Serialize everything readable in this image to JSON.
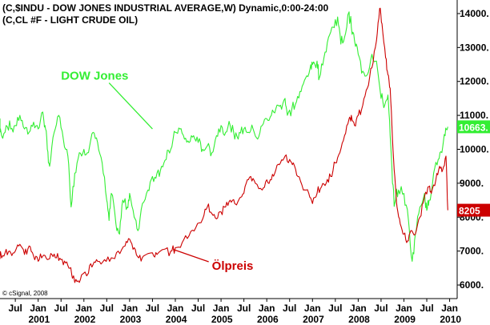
{
  "header": {
    "line1": "(C,$INDU - DOW JONES INDUSTRIAL AVERAGE,W) Dynamic,0:00-24:00",
    "line2": "(C,CL #F - LIGHT CRUDE OIL)"
  },
  "copyright": "© cSignal, 2008",
  "chart_data": {
    "type": "line",
    "ylim": [
      5600,
      14400
    ],
    "xlim": [
      2000.0,
      2010.2
    ],
    "yticks": [
      {
        "value": 14000,
        "label": "14000."
      },
      {
        "value": 13000,
        "label": "13000."
      },
      {
        "value": 12000,
        "label": "12000."
      },
      {
        "value": 11000,
        "label": "11000."
      },
      {
        "value": 10000,
        "label": "10000."
      },
      {
        "value": 9000,
        "label": "9000."
      },
      {
        "value": 8000,
        "label": "8000."
      },
      {
        "value": 7000,
        "label": "7000."
      },
      {
        "value": 6000,
        "label": "6000."
      }
    ],
    "xticks": [
      {
        "t": 2000.5,
        "label": "Jul"
      },
      {
        "t": 2001.0,
        "label": "Jan"
      },
      {
        "t": 2001.5,
        "label": "Jul"
      },
      {
        "t": 2002.0,
        "label": "Jan"
      },
      {
        "t": 2002.5,
        "label": "Jul"
      },
      {
        "t": 2003.0,
        "label": "Jan"
      },
      {
        "t": 2003.5,
        "label": "Jul"
      },
      {
        "t": 2004.0,
        "label": "Jan"
      },
      {
        "t": 2004.5,
        "label": "Jul"
      },
      {
        "t": 2005.0,
        "label": "Jan"
      },
      {
        "t": 2005.5,
        "label": "Jul"
      },
      {
        "t": 2006.0,
        "label": "Jan"
      },
      {
        "t": 2006.5,
        "label": "Jul"
      },
      {
        "t": 2007.0,
        "label": "Jan"
      },
      {
        "t": 2007.5,
        "label": "Jul"
      },
      {
        "t": 2008.0,
        "label": "Jan"
      },
      {
        "t": 2008.5,
        "label": "Jul"
      },
      {
        "t": 2009.0,
        "label": "Jan"
      },
      {
        "t": 2009.5,
        "label": "Jul"
      },
      {
        "t": 2010.0,
        "label": "Jan"
      }
    ],
    "years": [
      {
        "t": 2001.0,
        "label": "2001"
      },
      {
        "t": 2002.0,
        "label": "2002"
      },
      {
        "t": 2003.0,
        "label": "2003"
      },
      {
        "t": 2004.0,
        "label": "2004"
      },
      {
        "t": 2005.0,
        "label": "2005"
      },
      {
        "t": 2006.0,
        "label": "2006"
      },
      {
        "t": 2007.0,
        "label": "2007"
      },
      {
        "t": 2008.0,
        "label": "2008"
      },
      {
        "t": 2009.0,
        "label": "2009"
      },
      {
        "t": 2010.0,
        "label": "2010"
      }
    ],
    "series": [
      {
        "name": "DOW Jones",
        "color": "#33ee33",
        "last_label": "10663.",
        "points": [
          [
            2000.0,
            10500
          ],
          [
            2000.1,
            10900
          ],
          [
            2000.2,
            10400
          ],
          [
            2000.3,
            10700
          ],
          [
            2000.4,
            10600
          ],
          [
            2000.5,
            10700
          ],
          [
            2000.6,
            11000
          ],
          [
            2000.7,
            10600
          ],
          [
            2000.8,
            10500
          ],
          [
            2000.9,
            10800
          ],
          [
            2001.0,
            10600
          ],
          [
            2001.1,
            11100
          ],
          [
            2001.15,
            10700
          ],
          [
            2001.2,
            10000
          ],
          [
            2001.25,
            9500
          ],
          [
            2001.35,
            10500
          ],
          [
            2001.45,
            11000
          ],
          [
            2001.55,
            10300
          ],
          [
            2001.65,
            9800
          ],
          [
            2001.72,
            8300
          ],
          [
            2001.8,
            9300
          ],
          [
            2001.9,
            9900
          ],
          [
            2002.0,
            10000
          ],
          [
            2002.1,
            9900
          ],
          [
            2002.2,
            10500
          ],
          [
            2002.3,
            10200
          ],
          [
            2002.4,
            9600
          ],
          [
            2002.5,
            8500
          ],
          [
            2002.55,
            7900
          ],
          [
            2002.6,
            8700
          ],
          [
            2002.7,
            7800
          ],
          [
            2002.78,
            7500
          ],
          [
            2002.85,
            8500
          ],
          [
            2002.95,
            8300
          ],
          [
            2003.0,
            8700
          ],
          [
            2003.1,
            8000
          ],
          [
            2003.18,
            7600
          ],
          [
            2003.28,
            8400
          ],
          [
            2003.4,
            8800
          ],
          [
            2003.5,
            9200
          ],
          [
            2003.6,
            9300
          ],
          [
            2003.7,
            9500
          ],
          [
            2003.8,
            9700
          ],
          [
            2003.9,
            10000
          ],
          [
            2004.0,
            10500
          ],
          [
            2004.1,
            10600
          ],
          [
            2004.2,
            10300
          ],
          [
            2004.3,
            10200
          ],
          [
            2004.4,
            10400
          ],
          [
            2004.5,
            10200
          ],
          [
            2004.6,
            10000
          ],
          [
            2004.7,
            10100
          ],
          [
            2004.8,
            9900
          ],
          [
            2004.9,
            10400
          ],
          [
            2005.0,
            10700
          ],
          [
            2005.1,
            10500
          ],
          [
            2005.2,
            10700
          ],
          [
            2005.3,
            10300
          ],
          [
            2005.4,
            10500
          ],
          [
            2005.5,
            10600
          ],
          [
            2005.6,
            10500
          ],
          [
            2005.7,
            10600
          ],
          [
            2005.8,
            10300
          ],
          [
            2005.9,
            10700
          ],
          [
            2006.0,
            10900
          ],
          [
            2006.1,
            11000
          ],
          [
            2006.2,
            11200
          ],
          [
            2006.3,
            11300
          ],
          [
            2006.4,
            11500
          ],
          [
            2006.45,
            11000
          ],
          [
            2006.55,
            11200
          ],
          [
            2006.65,
            11400
          ],
          [
            2006.75,
            11700
          ],
          [
            2006.85,
            12100
          ],
          [
            2006.95,
            12400
          ],
          [
            2007.0,
            12500
          ],
          [
            2007.1,
            12600
          ],
          [
            2007.15,
            12100
          ],
          [
            2007.25,
            12700
          ],
          [
            2007.35,
            13300
          ],
          [
            2007.45,
            13600
          ],
          [
            2007.55,
            13900
          ],
          [
            2007.62,
            13100
          ],
          [
            2007.7,
            13300
          ],
          [
            2007.8,
            14050
          ],
          [
            2007.85,
            13600
          ],
          [
            2007.92,
            13200
          ],
          [
            2008.0,
            12800
          ],
          [
            2008.1,
            12300
          ],
          [
            2008.2,
            12200
          ],
          [
            2008.3,
            12800
          ],
          [
            2008.4,
            12600
          ],
          [
            2008.5,
            11500
          ],
          [
            2008.58,
            11300
          ],
          [
            2008.65,
            11600
          ],
          [
            2008.7,
            10400
          ],
          [
            2008.75,
            9000
          ],
          [
            2008.8,
            8400
          ],
          [
            2008.88,
            8800
          ],
          [
            2009.0,
            8700
          ],
          [
            2009.1,
            7900
          ],
          [
            2009.18,
            6700
          ],
          [
            2009.25,
            7500
          ],
          [
            2009.35,
            8300
          ],
          [
            2009.45,
            8700
          ],
          [
            2009.5,
            8200
          ],
          [
            2009.55,
            8500
          ],
          [
            2009.65,
            9300
          ],
          [
            2009.75,
            9700
          ],
          [
            2009.83,
            9900
          ],
          [
            2009.9,
            10400
          ],
          [
            2009.96,
            10663
          ]
        ]
      },
      {
        "name": "Ölpreis",
        "color": "#cc0000",
        "last_label": "8205",
        "points": [
          [
            2000.0,
            6800
          ],
          [
            2000.1,
            6950
          ],
          [
            2000.2,
            6800
          ],
          [
            2000.3,
            7050
          ],
          [
            2000.4,
            6950
          ],
          [
            2000.5,
            7000
          ],
          [
            2000.6,
            7200
          ],
          [
            2000.7,
            6900
          ],
          [
            2000.8,
            7150
          ],
          [
            2000.9,
            6850
          ],
          [
            2001.0,
            6700
          ],
          [
            2001.1,
            6850
          ],
          [
            2001.2,
            6750
          ],
          [
            2001.3,
            6900
          ],
          [
            2001.4,
            6800
          ],
          [
            2001.5,
            6750
          ],
          [
            2001.6,
            6650
          ],
          [
            2001.7,
            6500
          ],
          [
            2001.75,
            6200
          ],
          [
            2001.85,
            6100
          ],
          [
            2001.95,
            6300
          ],
          [
            2002.1,
            6350
          ],
          [
            2002.2,
            6600
          ],
          [
            2002.3,
            6700
          ],
          [
            2002.45,
            6750
          ],
          [
            2002.6,
            6800
          ],
          [
            2002.75,
            7000
          ],
          [
            2002.9,
            7150
          ],
          [
            2003.0,
            7350
          ],
          [
            2003.1,
            7100
          ],
          [
            2003.2,
            6800
          ],
          [
            2003.3,
            6850
          ],
          [
            2003.5,
            6950
          ],
          [
            2003.6,
            6900
          ],
          [
            2003.75,
            7050
          ],
          [
            2003.9,
            7000
          ],
          [
            2004.0,
            7100
          ],
          [
            2004.15,
            7250
          ],
          [
            2004.3,
            7450
          ],
          [
            2004.45,
            7700
          ],
          [
            2004.6,
            7950
          ],
          [
            2004.7,
            8300
          ],
          [
            2004.8,
            8100
          ],
          [
            2004.9,
            7950
          ],
          [
            2005.0,
            8150
          ],
          [
            2005.1,
            8300
          ],
          [
            2005.2,
            8500
          ],
          [
            2005.3,
            8400
          ],
          [
            2005.45,
            8600
          ],
          [
            2005.55,
            9000
          ],
          [
            2005.65,
            9200
          ],
          [
            2005.75,
            9000
          ],
          [
            2005.9,
            8800
          ],
          [
            2006.0,
            9100
          ],
          [
            2006.1,
            9100
          ],
          [
            2006.2,
            9400
          ],
          [
            2006.3,
            9600
          ],
          [
            2006.4,
            9800
          ],
          [
            2006.5,
            9700
          ],
          [
            2006.58,
            9600
          ],
          [
            2006.68,
            9200
          ],
          [
            2006.8,
            8800
          ],
          [
            2006.92,
            8700
          ],
          [
            2007.0,
            8400
          ],
          [
            2007.1,
            8700
          ],
          [
            2007.2,
            8900
          ],
          [
            2007.3,
            9000
          ],
          [
            2007.4,
            9200
          ],
          [
            2007.5,
            9600
          ],
          [
            2007.6,
            9900
          ],
          [
            2007.7,
            10400
          ],
          [
            2007.8,
            10900
          ],
          [
            2007.85,
            11000
          ],
          [
            2007.92,
            10700
          ],
          [
            2008.0,
            11000
          ],
          [
            2008.1,
            11300
          ],
          [
            2008.2,
            11800
          ],
          [
            2008.3,
            12400
          ],
          [
            2008.4,
            13200
          ],
          [
            2008.47,
            14150
          ],
          [
            2008.52,
            13700
          ],
          [
            2008.6,
            12700
          ],
          [
            2008.65,
            12200
          ],
          [
            2008.7,
            11800
          ],
          [
            2008.75,
            10300
          ],
          [
            2008.8,
            9200
          ],
          [
            2008.85,
            8300
          ],
          [
            2008.92,
            7800
          ],
          [
            2009.0,
            7500
          ],
          [
            2009.08,
            7300
          ],
          [
            2009.15,
            7600
          ],
          [
            2009.25,
            7500
          ],
          [
            2009.35,
            8000
          ],
          [
            2009.45,
            8600
          ],
          [
            2009.55,
            8900
          ],
          [
            2009.6,
            8700
          ],
          [
            2009.7,
            9100
          ],
          [
            2009.78,
            9500
          ],
          [
            2009.85,
            9400
          ],
          [
            2009.92,
            9800
          ],
          [
            2009.96,
            8205
          ]
        ]
      }
    ],
    "annotations": [
      {
        "text": "DOW Jones",
        "series": 0,
        "x": 2001.5,
        "y": 12050,
        "arrow_to": [
          2003.5,
          10600
        ]
      },
      {
        "text": "Ölpreis",
        "series": 1,
        "x": 2004.8,
        "y": 6450,
        "arrow_to": [
          2003.95,
          7050
        ]
      }
    ]
  }
}
